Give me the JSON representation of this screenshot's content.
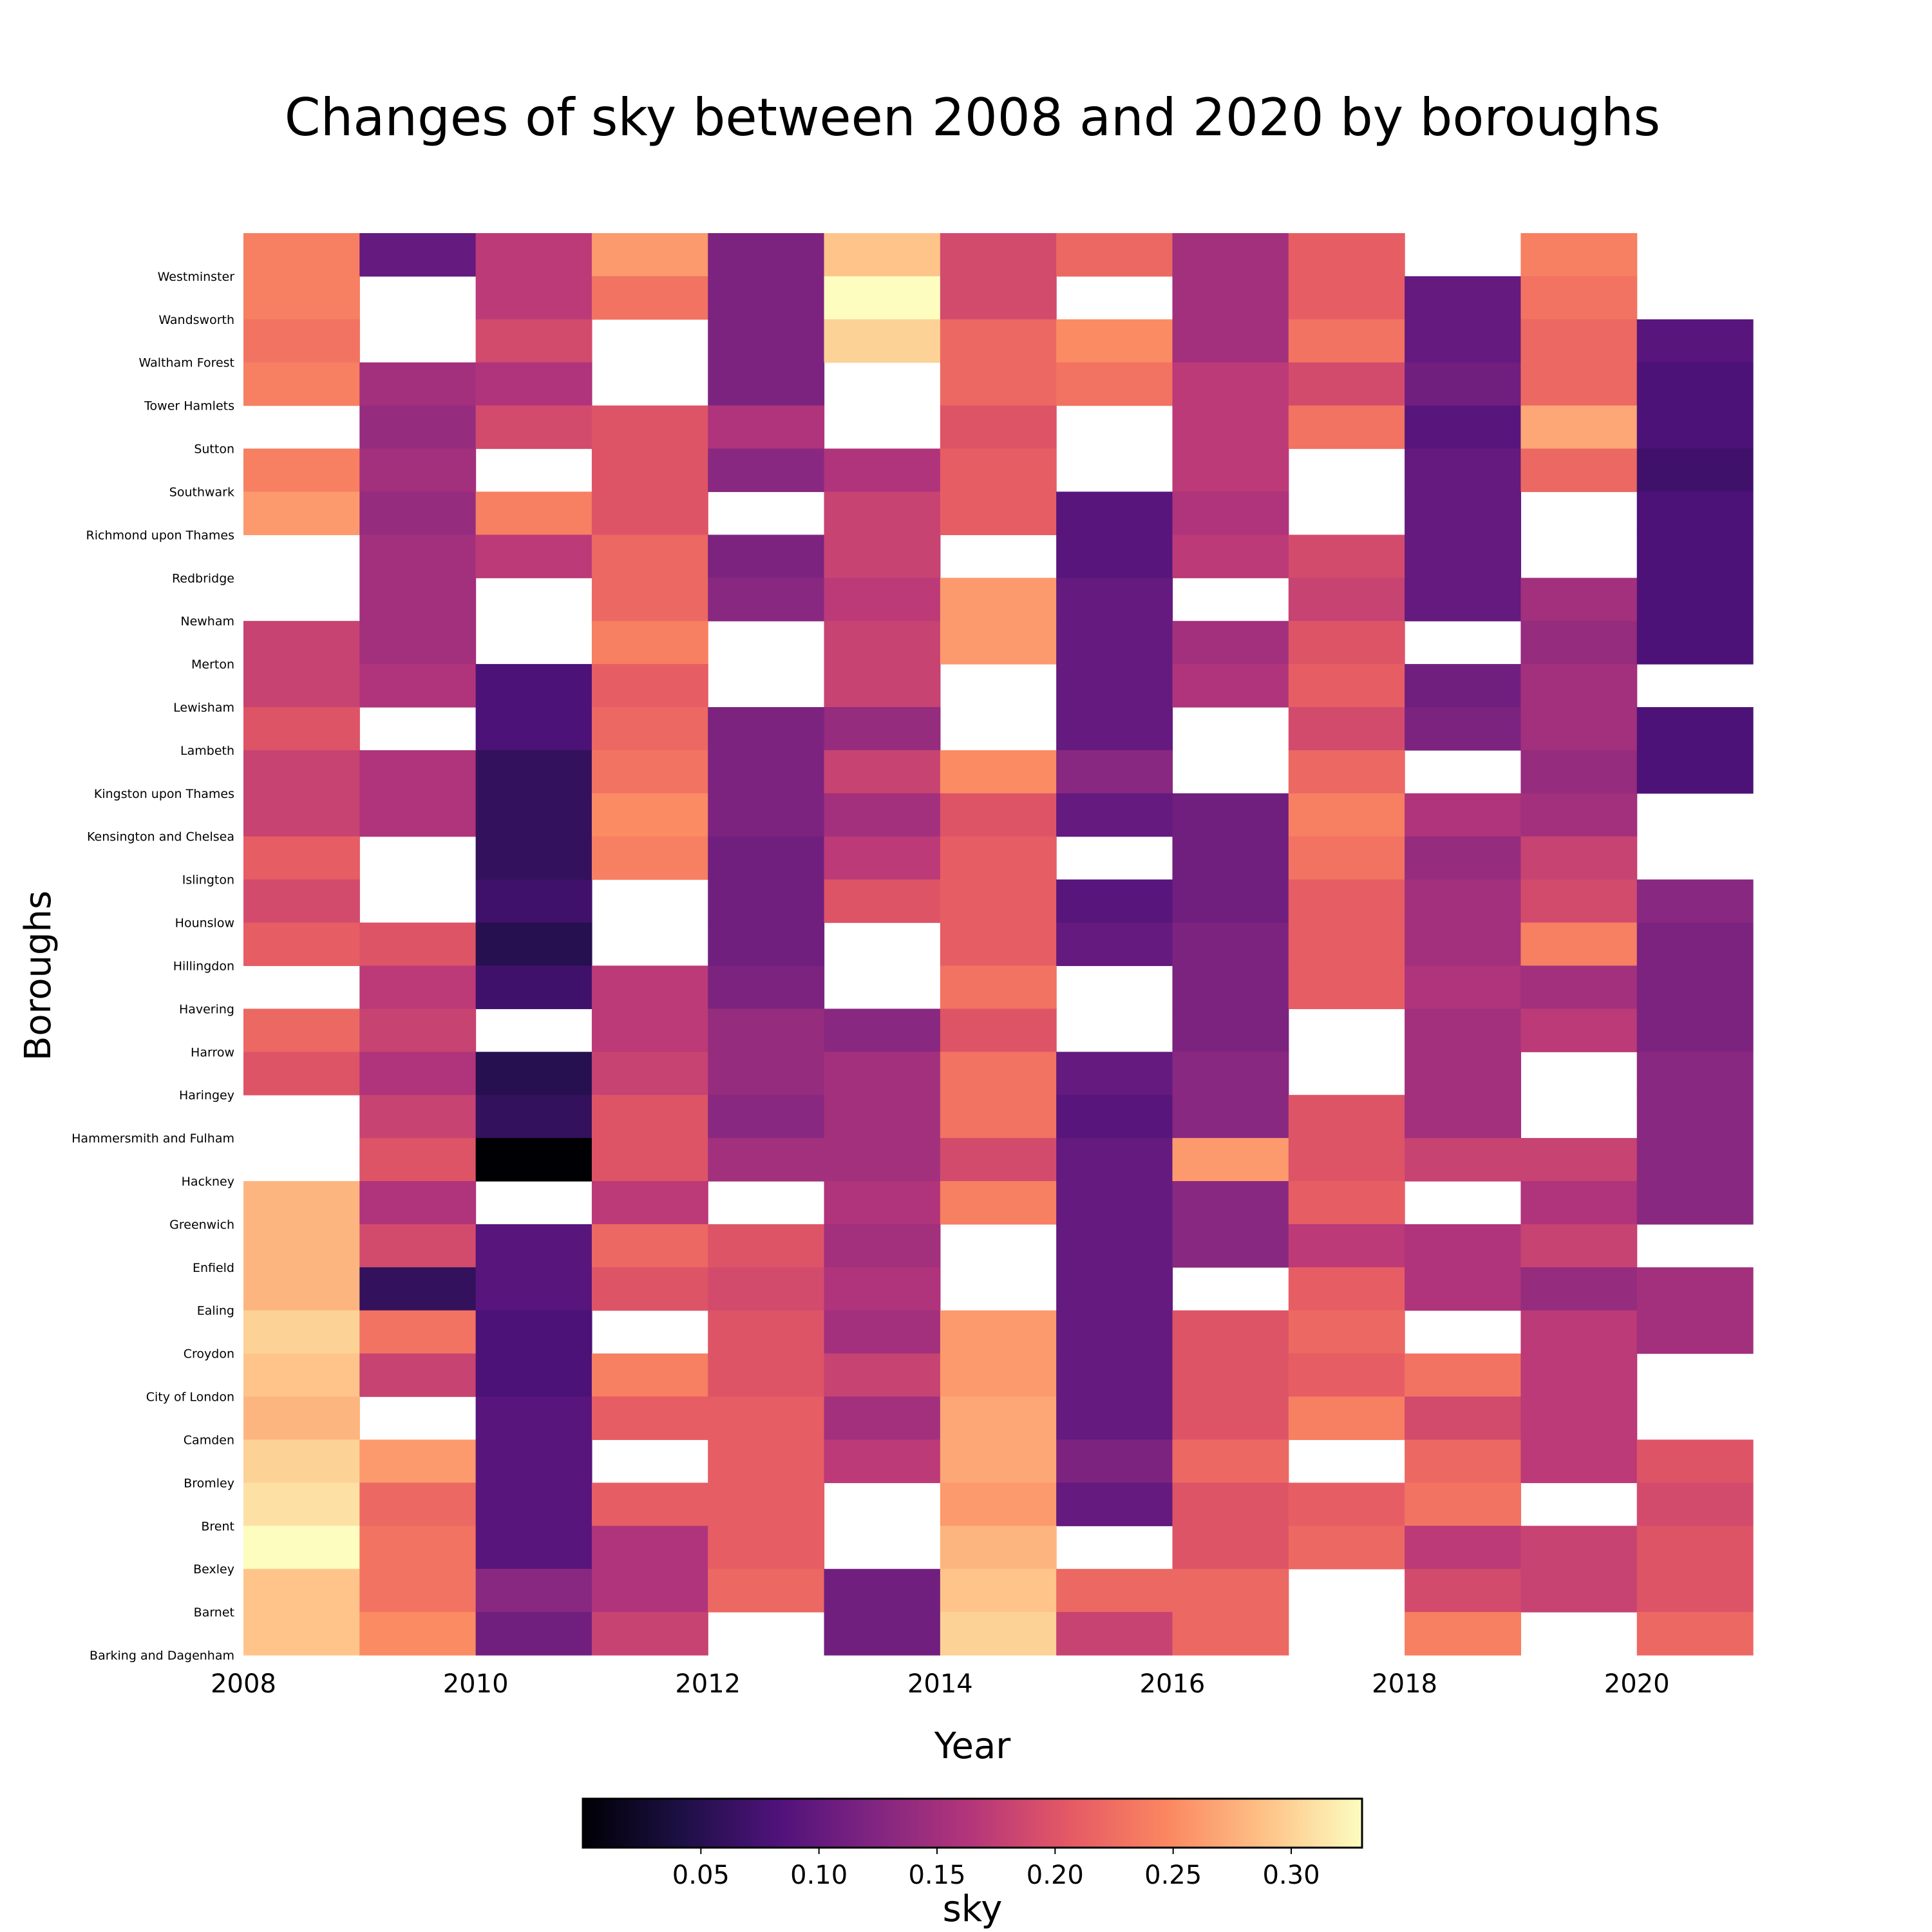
{
  "chart_data": {
    "type": "heatmap",
    "title": "Changes of sky between 2008 and 2020 by boroughs",
    "xlabel": "Year",
    "ylabel": "Boroughs",
    "colorbar_label": "sky",
    "colormap": "magma",
    "value_range": [
      0.0,
      0.33
    ],
    "colorbar_ticks": [
      "0.05",
      "0.10",
      "0.15",
      "0.20",
      "0.25",
      "0.30"
    ],
    "x_ticks": [
      "2008",
      "2010",
      "2012",
      "2014",
      "2016",
      "2018",
      "2020"
    ],
    "x": [
      2008,
      2009,
      2010,
      2011,
      2012,
      2013,
      2014,
      2015,
      2016,
      2017,
      2018,
      2019,
      2020
    ],
    "y": [
      "Westminster",
      "Wandsworth",
      "Waltham Forest",
      "Tower Hamlets",
      "Sutton",
      "Southwark",
      "Richmond upon Thames",
      "Redbridge",
      "Newham",
      "Merton",
      "Lewisham",
      "Lambeth",
      "Kingston upon Thames",
      "Kensington and Chelsea",
      "Islington",
      "Hounslow",
      "Hillingdon",
      "Havering",
      "Harrow",
      "Haringey",
      "Hammersmith and Fulham",
      "Hackney",
      "Greenwich",
      "Enfield",
      "Ealing",
      "Croydon",
      "City of London",
      "Camden",
      "Bromley",
      "Brent",
      "Bexley",
      "Barnet",
      "Barking and Dagenham"
    ],
    "z": [
      [
        0.24,
        0.1,
        0.17,
        0.26,
        0.12,
        0.29,
        0.19,
        0.22,
        0.15,
        0.21,
        null,
        0.24,
        null
      ],
      [
        0.24,
        null,
        0.17,
        0.23,
        0.12,
        0.33,
        0.19,
        null,
        0.15,
        0.21,
        0.1,
        0.23,
        null
      ],
      [
        0.23,
        null,
        0.19,
        null,
        0.12,
        0.3,
        0.22,
        0.25,
        0.15,
        0.23,
        0.1,
        0.22,
        0.09
      ],
      [
        0.24,
        0.15,
        0.16,
        null,
        0.12,
        null,
        0.22,
        0.23,
        0.17,
        0.19,
        0.11,
        0.22,
        0.08
      ],
      [
        null,
        0.14,
        0.19,
        0.2,
        0.16,
        null,
        0.2,
        null,
        0.17,
        0.23,
        0.09,
        0.27,
        0.08
      ],
      [
        0.24,
        0.15,
        null,
        0.2,
        0.13,
        0.16,
        0.21,
        null,
        0.17,
        null,
        0.1,
        0.22,
        0.07
      ],
      [
        0.26,
        0.14,
        0.24,
        0.2,
        null,
        0.18,
        0.21,
        0.09,
        0.16,
        null,
        0.1,
        null,
        0.08
      ],
      [
        null,
        0.15,
        0.17,
        0.22,
        0.12,
        0.18,
        null,
        0.09,
        0.17,
        0.19,
        0.1,
        null,
        0.08
      ],
      [
        null,
        0.15,
        null,
        0.22,
        0.13,
        0.17,
        0.26,
        0.1,
        null,
        0.18,
        0.1,
        0.15,
        0.08
      ],
      [
        0.18,
        0.15,
        null,
        0.24,
        null,
        0.18,
        0.26,
        0.1,
        0.15,
        0.2,
        null,
        0.14,
        0.08
      ],
      [
        0.18,
        0.16,
        0.08,
        0.21,
        null,
        0.18,
        null,
        0.1,
        0.16,
        0.21,
        0.11,
        0.15,
        null
      ],
      [
        0.2,
        null,
        0.08,
        0.22,
        0.12,
        0.14,
        null,
        0.1,
        null,
        0.19,
        0.12,
        0.15,
        0.08
      ],
      [
        0.18,
        0.16,
        0.06,
        0.23,
        0.12,
        0.18,
        0.25,
        0.13,
        null,
        0.22,
        null,
        0.14,
        0.08
      ],
      [
        0.18,
        0.16,
        0.06,
        0.25,
        0.12,
        0.15,
        0.2,
        0.1,
        0.11,
        0.24,
        0.16,
        0.15,
        null
      ],
      [
        0.21,
        null,
        0.06,
        0.24,
        0.11,
        0.17,
        0.21,
        null,
        0.11,
        0.23,
        0.14,
        0.18,
        null
      ],
      [
        0.19,
        null,
        0.07,
        null,
        0.11,
        0.2,
        0.21,
        0.09,
        0.11,
        0.21,
        0.15,
        0.19,
        0.13
      ],
      [
        0.21,
        0.2,
        0.05,
        null,
        0.11,
        null,
        0.21,
        0.1,
        0.12,
        0.21,
        0.15,
        0.24,
        0.12
      ],
      [
        null,
        0.17,
        0.07,
        0.17,
        0.12,
        null,
        0.23,
        null,
        0.12,
        0.21,
        0.16,
        0.15,
        0.12
      ],
      [
        0.22,
        0.18,
        null,
        0.17,
        0.14,
        0.13,
        0.2,
        null,
        0.12,
        null,
        0.15,
        0.17,
        0.12
      ],
      [
        0.2,
        0.16,
        0.05,
        0.18,
        0.14,
        0.15,
        0.23,
        0.1,
        0.13,
        null,
        0.15,
        null,
        0.13
      ],
      [
        null,
        0.18,
        0.06,
        0.2,
        0.13,
        0.15,
        0.23,
        0.09,
        0.13,
        0.2,
        0.15,
        null,
        0.13
      ],
      [
        null,
        0.2,
        0.0,
        0.2,
        0.15,
        0.15,
        0.19,
        0.1,
        0.26,
        0.2,
        0.18,
        0.18,
        0.13
      ],
      [
        0.28,
        0.16,
        null,
        0.17,
        null,
        0.16,
        0.24,
        0.1,
        0.13,
        0.21,
        null,
        0.16,
        0.13
      ],
      [
        0.28,
        0.19,
        0.09,
        0.22,
        0.2,
        0.15,
        null,
        0.1,
        0.13,
        0.17,
        0.16,
        0.18,
        null
      ],
      [
        0.28,
        0.06,
        0.09,
        0.2,
        0.19,
        0.16,
        null,
        0.1,
        null,
        0.21,
        0.16,
        0.14,
        0.15
      ],
      [
        0.3,
        0.23,
        0.08,
        null,
        0.2,
        0.15,
        0.26,
        0.1,
        0.2,
        0.22,
        null,
        0.17,
        0.15
      ],
      [
        0.29,
        0.18,
        0.08,
        0.24,
        0.2,
        0.18,
        0.26,
        0.1,
        0.2,
        0.21,
        0.23,
        0.17,
        null
      ],
      [
        0.28,
        null,
        0.09,
        0.21,
        0.21,
        0.15,
        0.27,
        0.1,
        0.2,
        0.24,
        0.19,
        0.17,
        null
      ],
      [
        0.3,
        0.26,
        0.09,
        null,
        0.21,
        0.17,
        0.27,
        0.12,
        0.22,
        null,
        0.22,
        0.17,
        0.2
      ],
      [
        0.31,
        0.22,
        0.09,
        0.21,
        0.21,
        null,
        0.26,
        0.1,
        0.2,
        0.21,
        0.23,
        null,
        0.19
      ],
      [
        0.33,
        0.23,
        0.09,
        0.16,
        0.21,
        null,
        0.28,
        null,
        0.2,
        0.22,
        0.17,
        0.18,
        0.2
      ],
      [
        0.29,
        0.23,
        0.13,
        0.16,
        0.22,
        0.11,
        0.29,
        0.22,
        0.22,
        null,
        0.19,
        0.18,
        0.2
      ],
      [
        0.29,
        0.25,
        0.11,
        0.18,
        null,
        0.11,
        0.3,
        0.18,
        0.22,
        null,
        0.24,
        null,
        0.22
      ]
    ]
  }
}
